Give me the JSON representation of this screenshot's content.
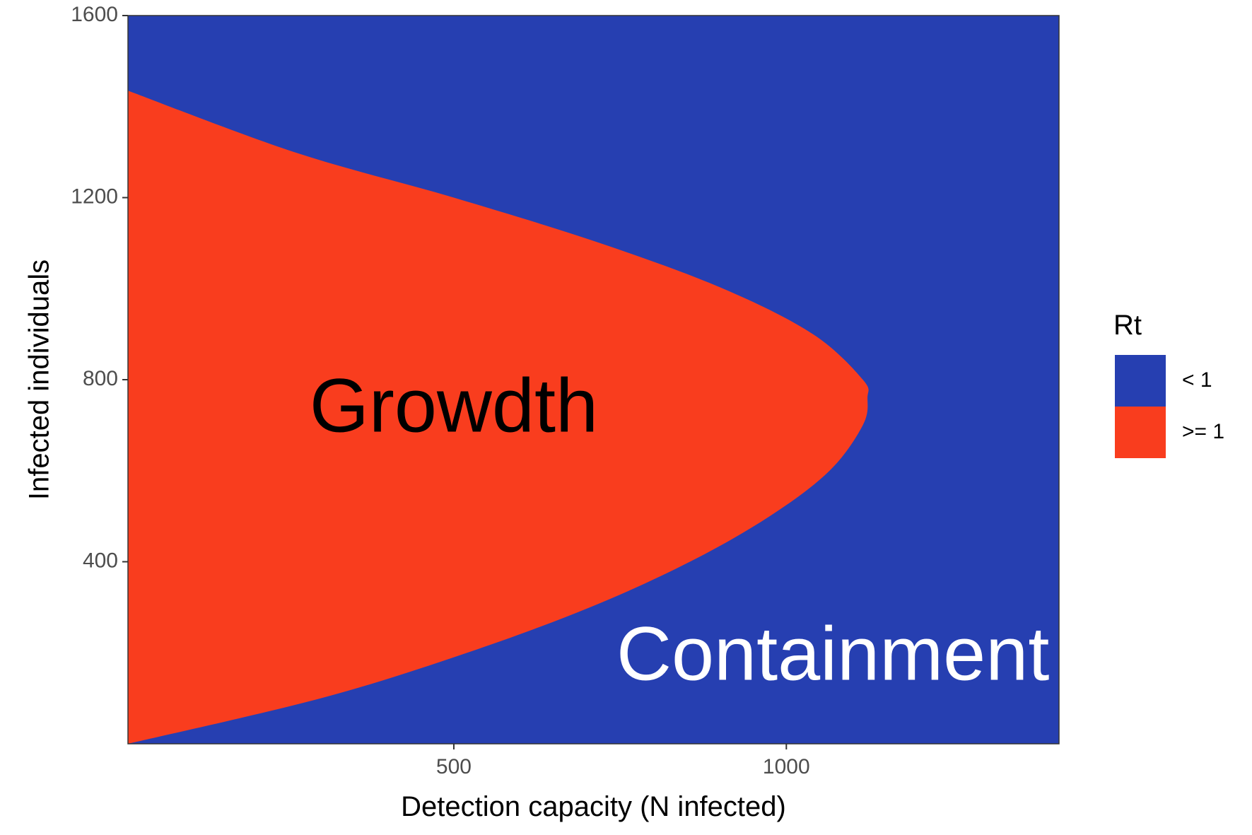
{
  "chart_data": {
    "type": "heatmap",
    "title": "",
    "xlabel": "Detection capacity (N infected)",
    "ylabel": "Infected individuals",
    "xlim": [
      10,
      1410
    ],
    "ylim": [
      0,
      1600
    ],
    "x_ticks": [
      500,
      1000
    ],
    "x_tick_labels": [
      "500",
      "1000"
    ],
    "y_ticks": [
      400,
      800,
      1200,
      1600
    ],
    "y_tick_labels": [
      "400",
      "800",
      "1200",
      "1600"
    ],
    "grid": false,
    "legend": {
      "title": "Rt",
      "position": "right",
      "entries": [
        {
          "label": "< 1",
          "color": "#263FB1"
        },
        {
          "label": ">= 1",
          "color": "#F93D1E"
        }
      ]
    },
    "fill_variable": "Rt",
    "categories": [
      "< 1",
      ">= 1"
    ],
    "region_boundary": {
      "description_of_rt_ge_1_region": "x values at which Rt crosses 1, for each infected count (y)",
      "points": [
        {
          "y": 0,
          "x": 10
        },
        {
          "y": 100,
          "x": 300
        },
        {
          "y": 200,
          "x": 520
        },
        {
          "y": 300,
          "x": 705
        },
        {
          "y": 400,
          "x": 855
        },
        {
          "y": 500,
          "x": 975
        },
        {
          "y": 600,
          "x": 1065
        },
        {
          "y": 700,
          "x": 1115
        },
        {
          "y": 760,
          "x": 1122
        },
        {
          "y": 800,
          "x": 1115
        },
        {
          "y": 900,
          "x": 1040
        },
        {
          "y": 1000,
          "x": 905
        },
        {
          "y": 1100,
          "x": 720
        },
        {
          "y": 1200,
          "x": 500
        },
        {
          "y": 1300,
          "x": 260
        },
        {
          "y": 1435,
          "x": 10
        }
      ]
    },
    "annotations": [
      {
        "text": "Growdth",
        "x": 500,
        "y": 730,
        "color": "#000000"
      },
      {
        "text": "Containment",
        "x": 1070,
        "y": 185,
        "color": "#ffffff"
      }
    ]
  }
}
